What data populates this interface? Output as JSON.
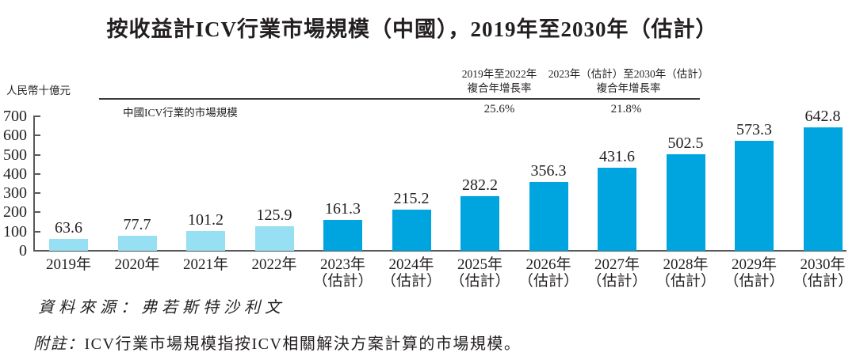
{
  "title": "按收益計ICV行業市場規模（中國），2019年至2030年（估計）",
  "chart_data": {
    "type": "bar",
    "title": "按收益計ICV行業市場規模（中國），2019年至2030年（估計）",
    "unit_label": "人民幣十億元",
    "series_label": "中國ICV行業的市場規模",
    "ylim": [
      0,
      700
    ],
    "yticks": [
      0,
      100,
      200,
      300,
      400,
      500,
      600,
      700
    ],
    "grid": false,
    "categories": [
      [
        "2019年"
      ],
      [
        "2020年"
      ],
      [
        "2021年"
      ],
      [
        "2022年"
      ],
      [
        "2023年",
        "（估計）"
      ],
      [
        "2024年",
        "（估計）"
      ],
      [
        "2025年",
        "（估計）"
      ],
      [
        "2026年",
        "（估計）"
      ],
      [
        "2027年",
        "（估計）"
      ],
      [
        "2028年",
        "（估計）"
      ],
      [
        "2029年",
        "（估計）"
      ],
      [
        "2030年",
        "（估計）"
      ]
    ],
    "values": [
      63.6,
      77.7,
      101.2,
      125.9,
      161.3,
      215.2,
      282.2,
      356.3,
      431.6,
      502.5,
      573.3,
      642.8
    ],
    "estimated_start_index": 4,
    "colors": {
      "historical": "#97DFF3",
      "estimated": "#00A5E0",
      "axis": "#58595b",
      "text": "#231f20"
    },
    "cagr_annotations": [
      {
        "header": [
          "2019年至2022年",
          "複合年增長率"
        ],
        "value": "25.6%"
      },
      {
        "header": [
          "2023年（估計）至2030年（估計）",
          "複合年增長率"
        ],
        "value": "21.8%"
      }
    ]
  },
  "source_line": "資料來源：弗若斯特沙利文",
  "note": {
    "prefix": "附註：",
    "text": "ICV行業市場規模指按ICV相關解決方案計算的市場規模。"
  }
}
